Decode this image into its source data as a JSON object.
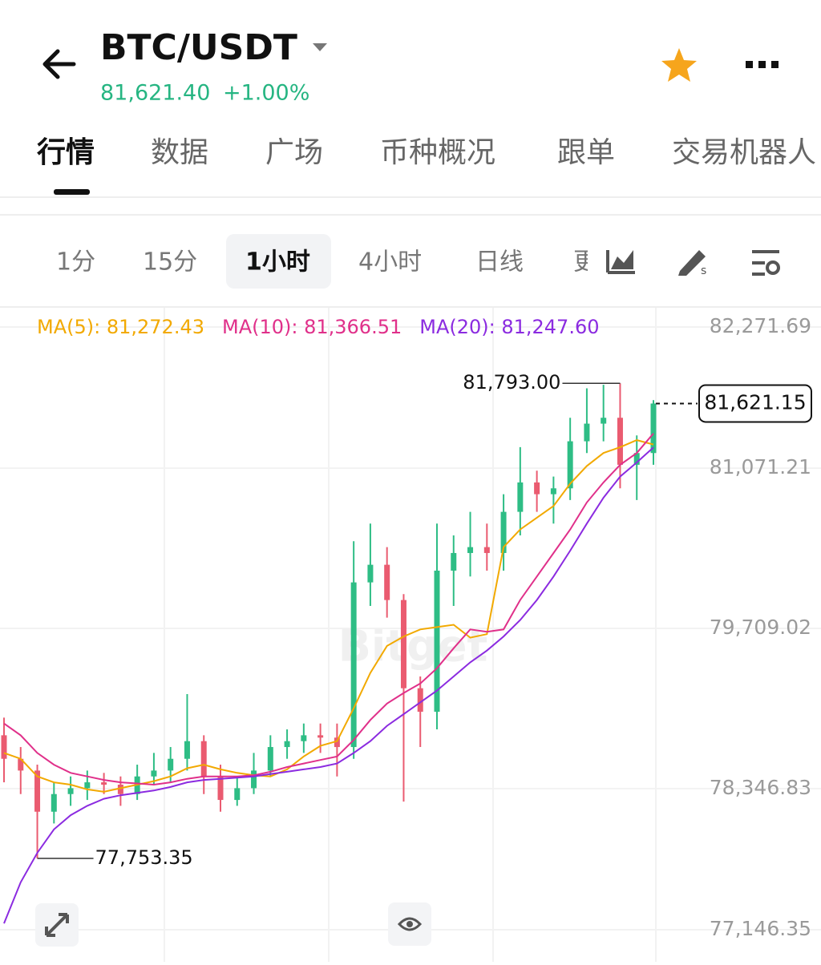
{
  "header": {
    "title": "BTC/USDT",
    "price": "81,621.40",
    "change": "+1.00%"
  },
  "tabs": [
    "行情",
    "数据",
    "广场",
    "币种概况",
    "跟单",
    "交易机器人"
  ],
  "intervals": [
    "1分",
    "15分",
    "1小时",
    "4小时",
    "日线",
    "更"
  ],
  "watermark": "Bitget",
  "chart_data": {
    "type": "candlestick",
    "open": [
      78800,
      78600,
      78500,
      78150,
      78300,
      78350,
      78400,
      78380,
      78300,
      78450,
      78500,
      78600,
      78750,
      78450,
      78250,
      78350,
      78500,
      78700,
      78750,
      78800,
      78780,
      78700,
      80100,
      80250,
      79950,
      79200,
      79000,
      80200,
      80350,
      80400,
      80350,
      80700,
      80950,
      80850,
      80900,
      81300,
      81450,
      81500,
      81100,
      81200
    ],
    "high": [
      78950,
      78700,
      78550,
      78400,
      78450,
      78500,
      78480,
      78450,
      78550,
      78650,
      78700,
      79150,
      78800,
      78550,
      78450,
      78650,
      78800,
      78850,
      78900,
      78900,
      78900,
      80450,
      80600,
      80400,
      80000,
      79300,
      80600,
      80500,
      80700,
      80600,
      80850,
      81250,
      81050,
      81000,
      81500,
      81750,
      81780,
      81793,
      81350,
      81650
    ],
    "low": [
      78400,
      78300,
      77753.35,
      78050,
      78200,
      78250,
      78300,
      78200,
      78250,
      78380,
      78400,
      78500,
      78300,
      78150,
      78200,
      78300,
      78450,
      78600,
      78650,
      78650,
      78450,
      78600,
      79900,
      79800,
      78236,
      78700,
      78850,
      79900,
      80150,
      80200,
      80200,
      80500,
      80700,
      80600,
      80800,
      81200,
      81300,
      80900,
      80800,
      81100
    ],
    "close": [
      78600,
      78500,
      78150,
      78300,
      78350,
      78400,
      78380,
      78300,
      78450,
      78500,
      78600,
      78750,
      78450,
      78250,
      78350,
      78500,
      78700,
      78750,
      78800,
      78780,
      78700,
      80100,
      80250,
      79950,
      79200,
      79000,
      80200,
      80350,
      80400,
      80350,
      80700,
      80950,
      80850,
      80900,
      81300,
      81450,
      81500,
      81100,
      81200,
      81621.15
    ],
    "up_color": "#2ebd85",
    "down_color": "#ea5b70",
    "series": [
      {
        "name": "MA(5): 81,272.43",
        "color": "#f2a900",
        "values": [
          78650,
          78600,
          78450,
          78400,
          78380,
          78340,
          78320,
          78350,
          78380,
          78410,
          78450,
          78520,
          78550,
          78510,
          78480,
          78460,
          78450,
          78510,
          78620,
          78710,
          78750,
          79030,
          79330,
          79560,
          79640,
          79700,
          79720,
          79740,
          79630,
          79660,
          80400,
          80550,
          80650,
          80750,
          80940,
          81090,
          81200,
          81250,
          81310,
          81272.43
        ]
      },
      {
        "name": "MA(10): 81,366.51",
        "color": "#e0308a",
        "values": [
          78900,
          78800,
          78650,
          78550,
          78480,
          78450,
          78420,
          78400,
          78390,
          78380,
          78400,
          78430,
          78450,
          78450,
          78450,
          78460,
          78490,
          78530,
          78560,
          78590,
          78620,
          78760,
          78930,
          79070,
          79160,
          79240,
          79370,
          79540,
          79700,
          79680,
          79700,
          79950,
          80150,
          80350,
          80550,
          80780,
          80950,
          81100,
          81200,
          81366.51
        ]
      },
      {
        "name": "MA(20): 81,247.60",
        "color": "#8b2be0",
        "values": [
          77200,
          77550,
          77800,
          78000,
          78120,
          78200,
          78260,
          78290,
          78310,
          78330,
          78360,
          78400,
          78420,
          78430,
          78440,
          78450,
          78470,
          78490,
          78510,
          78530,
          78560,
          78650,
          78750,
          78880,
          78980,
          79080,
          79180,
          79300,
          79420,
          79520,
          79640,
          79780,
          79950,
          80150,
          80370,
          80600,
          80820,
          81000,
          81120,
          81247.6
        ]
      }
    ],
    "ylim": [
      77146.35,
      82271.69
    ],
    "yticks": [
      {
        "value": 82271.69,
        "label": "82,271.69"
      },
      {
        "value": 81071.21,
        "label": "81,071.21"
      },
      {
        "value": 79709.02,
        "label": "79,709.02"
      },
      {
        "value": 78346.83,
        "label": "78,346.83"
      },
      {
        "value": 77146.35,
        "label": "77,146.35"
      }
    ],
    "grid": true,
    "max_label": "81,793.00",
    "min_label": "77,753.35",
    "last_label": "81,621.15"
  }
}
